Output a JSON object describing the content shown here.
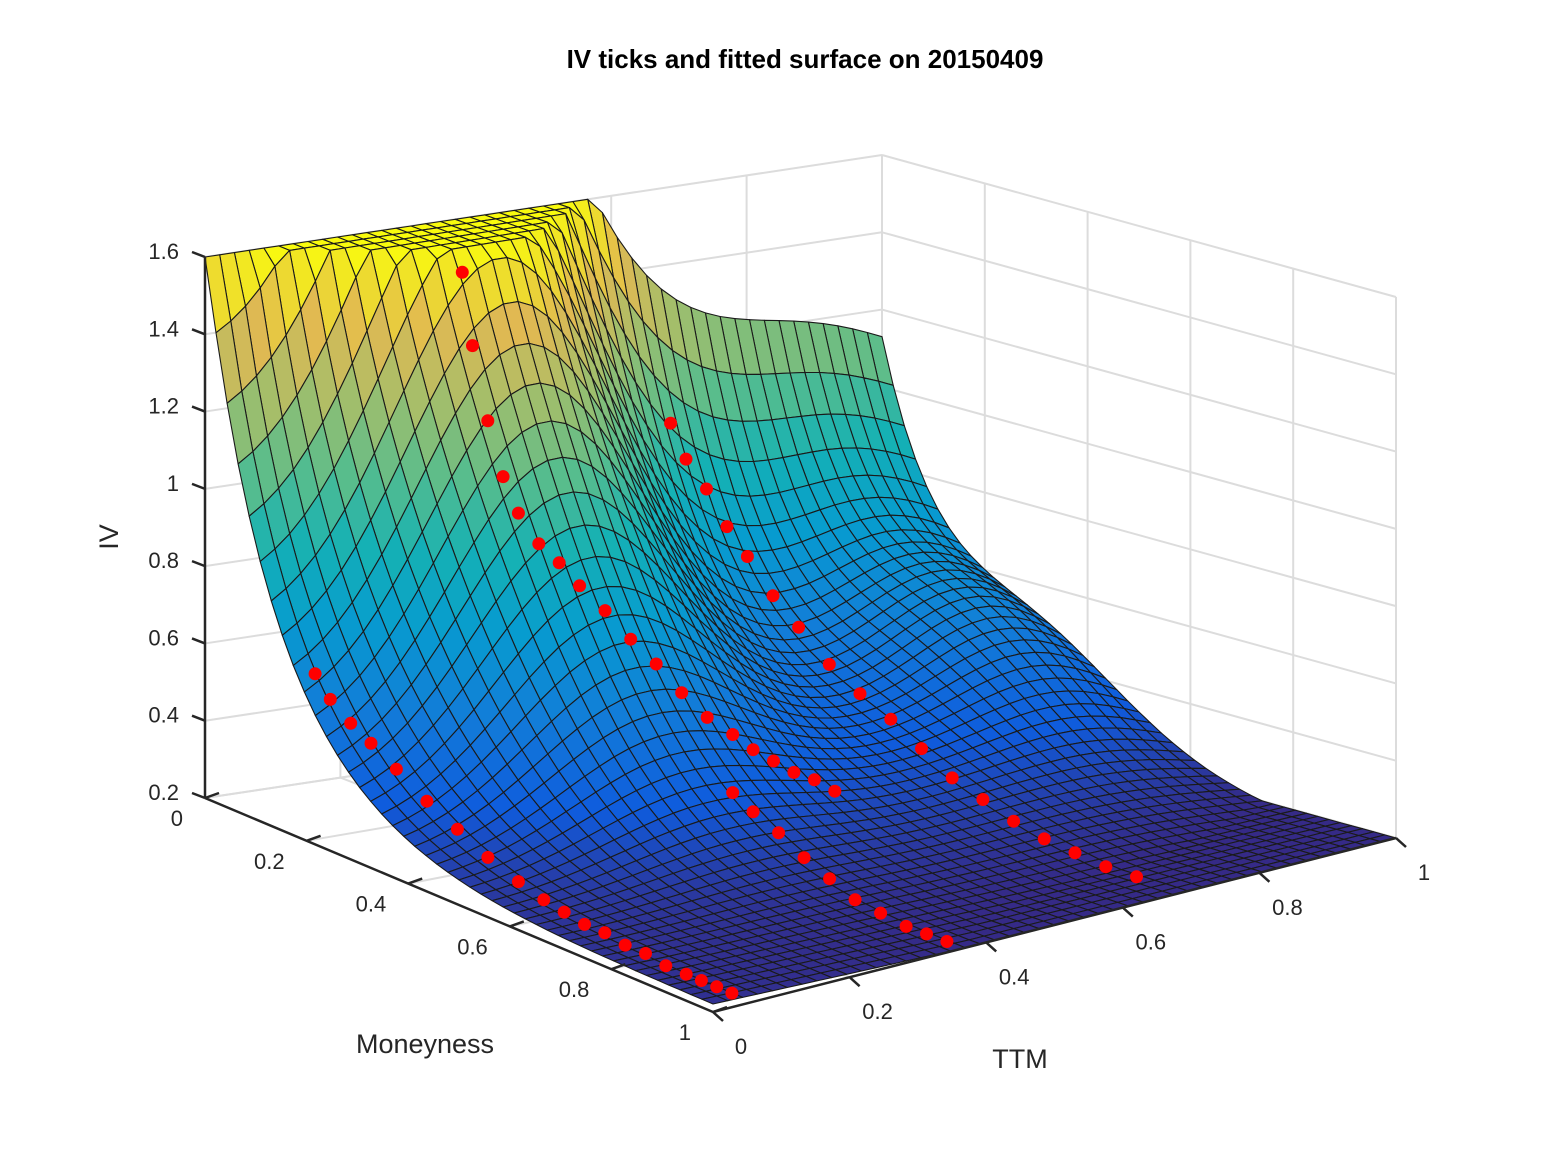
{
  "chart_data": {
    "type": "surface",
    "title": "IV ticks and fitted surface on 20150409",
    "xlabel": "Moneyness",
    "ylabel": "TTM",
    "zlabel": "IV",
    "xlim": [
      0,
      1
    ],
    "ylim": [
      0,
      1
    ],
    "zlim": [
      0.2,
      1.6
    ],
    "x_ticks": [
      "0",
      "0.2",
      "0.4",
      "0.6",
      "0.8",
      "1"
    ],
    "y_ticks": [
      "0",
      "0.2",
      "0.4",
      "0.6",
      "0.8",
      "1"
    ],
    "z_ticks": [
      "0.2",
      "0.4",
      "0.6",
      "0.8",
      "1",
      "1.2",
      "1.4",
      "1.6"
    ],
    "grid": true,
    "colormap": "parula",
    "surface_color_low": "#352a87",
    "surface_color_high": "#f9fb0e",
    "tick_series": [
      {
        "ttm": 0.05,
        "moneyness": [
          0.15,
          0.18,
          0.22,
          0.26,
          0.31,
          0.37,
          0.43,
          0.49,
          0.55,
          0.6,
          0.64,
          0.68,
          0.72,
          0.76,
          0.8,
          0.84,
          0.88,
          0.91,
          0.94,
          0.97
        ],
        "iv": [
          0.59,
          0.54,
          0.5,
          0.47,
          0.43,
          0.38,
          0.34,
          0.3,
          0.27,
          0.25,
          0.24,
          0.23,
          0.23,
          0.22,
          0.22,
          0.21,
          0.21,
          0.21,
          0.21,
          0.21
        ]
      },
      {
        "ttm": 0.38,
        "moneyness": [
          0.0,
          0.02,
          0.05,
          0.08,
          0.11,
          0.15,
          0.19,
          0.23,
          0.28,
          0.33,
          0.38,
          0.43,
          0.48,
          0.53,
          0.57,
          0.61,
          0.65,
          0.69,
          0.73
        ],
        "iv": [
          1.46,
          1.28,
          1.1,
          0.97,
          0.89,
          0.83,
          0.8,
          0.76,
          0.72,
          0.67,
          0.63,
          0.58,
          0.54,
          0.52,
          0.5,
          0.49,
          0.48,
          0.48,
          0.47
        ]
      },
      {
        "ttm": 0.35,
        "moneyness": [
          0.57,
          0.61,
          0.66,
          0.71,
          0.76,
          0.81,
          0.86,
          0.91,
          0.95,
          0.99
        ],
        "iv": [
          0.4,
          0.37,
          0.34,
          0.3,
          0.27,
          0.24,
          0.23,
          0.22,
          0.22,
          0.22
        ]
      },
      {
        "ttm": 0.65,
        "moneyness": [
          0.05,
          0.08,
          0.12,
          0.16,
          0.2,
          0.25,
          0.3,
          0.36,
          0.42,
          0.48,
          0.54,
          0.6,
          0.66,
          0.72,
          0.78,
          0.84,
          0.9,
          0.96
        ],
        "iv": [
          1.02,
          0.94,
          0.88,
          0.8,
          0.74,
          0.66,
          0.6,
          0.53,
          0.48,
          0.44,
          0.39,
          0.34,
          0.31,
          0.28,
          0.26,
          0.25,
          0.24,
          0.24
        ]
      }
    ]
  }
}
